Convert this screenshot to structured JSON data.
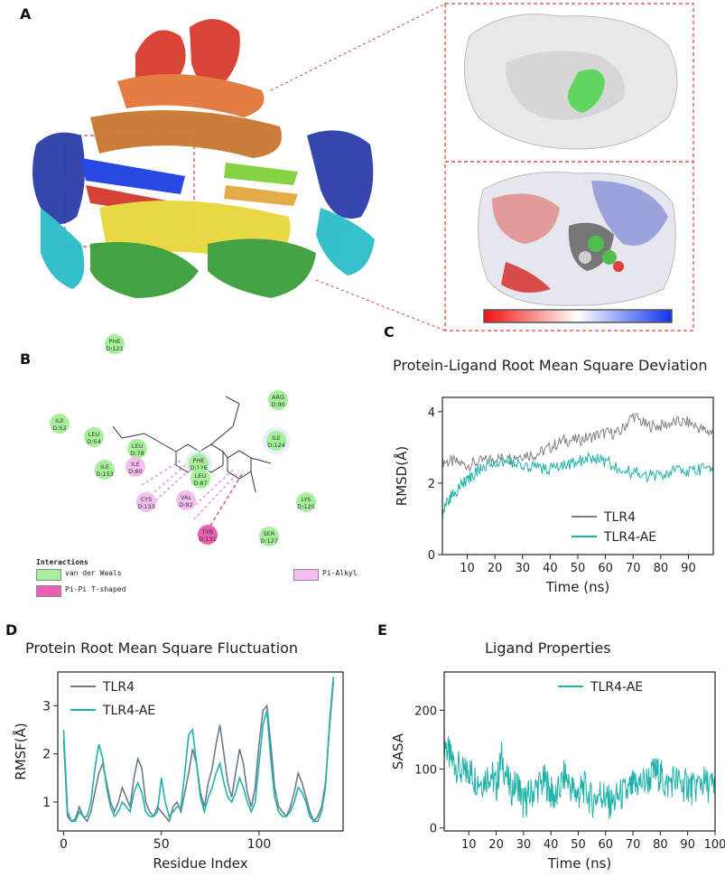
{
  "panels": {
    "A": {
      "label": "A"
    },
    "B": {
      "label": "B",
      "residues": [
        {
          "name": "PHE",
          "id": "D:121",
          "kind": "vdw"
        },
        {
          "name": "ARG",
          "id": "D:90",
          "kind": "vdw"
        },
        {
          "name": "ILE",
          "id": "D:124",
          "kind": "vdw"
        },
        {
          "name": "ILE",
          "id": "D:52",
          "kind": "vdw"
        },
        {
          "name": "LEU",
          "id": "D:54",
          "kind": "vdw"
        },
        {
          "name": "LEU",
          "id": "D:78",
          "kind": "vdw"
        },
        {
          "name": "ILE",
          "id": "D:80",
          "kind": "alkyl"
        },
        {
          "name": "ILE",
          "id": "D:153",
          "kind": "vdw"
        },
        {
          "name": "PHE",
          "id": "D:126",
          "kind": "vdw"
        },
        {
          "name": "LEU",
          "id": "D:87",
          "kind": "vdw"
        },
        {
          "name": "CYS",
          "id": "D:133",
          "kind": "alkyl"
        },
        {
          "name": "VAL",
          "id": "D:82",
          "kind": "alkyl"
        },
        {
          "name": "LYS",
          "id": "D:125",
          "kind": "vdw"
        },
        {
          "name": "TYR",
          "id": "D:131",
          "kind": "pipi"
        },
        {
          "name": "SER",
          "id": "D:127",
          "kind": "vdw"
        }
      ],
      "legend": {
        "title": "Interactions",
        "vdw": "van der Waals",
        "pipi": "Pi-Pi T-shaped",
        "alkyl": "Pi-Alkyl"
      },
      "colors": {
        "vdw": "#a6f09a",
        "pipi": "#e861b4",
        "alkyl": "#f4bff0"
      }
    }
  },
  "chart_data": [
    {
      "id": "C",
      "label": "C",
      "type": "line",
      "title": "Protein-Ligand Root Mean Square Deviation",
      "xlabel": "Time (ns)",
      "ylabel": "RMSD(Å)",
      "xlim": [
        1,
        99
      ],
      "ylim": [
        0,
        4.4
      ],
      "xticks": [
        10,
        20,
        30,
        40,
        50,
        60,
        70,
        80,
        90
      ],
      "yticks": [
        0,
        2,
        4
      ],
      "legend_position": "lower-right",
      "series": [
        {
          "name": "TLR4",
          "color": "#808080",
          "x": [
            1,
            5,
            10,
            15,
            20,
            25,
            30,
            35,
            40,
            45,
            50,
            55,
            60,
            65,
            70,
            75,
            80,
            85,
            90,
            95,
            99
          ],
          "y": [
            2.6,
            2.6,
            2.5,
            2.6,
            2.7,
            2.7,
            2.8,
            2.8,
            3.0,
            3.2,
            3.2,
            3.3,
            3.4,
            3.4,
            3.9,
            3.6,
            3.6,
            3.7,
            3.7,
            3.5,
            3.4
          ]
        },
        {
          "name": "TLR4-AE",
          "color": "#20b2aa",
          "x": [
            1,
            3,
            5,
            8,
            10,
            12,
            15,
            20,
            25,
            30,
            35,
            40,
            45,
            50,
            55,
            60,
            65,
            70,
            75,
            80,
            85,
            90,
            95,
            99
          ],
          "y": [
            1.1,
            1.5,
            1.7,
            2.0,
            2.1,
            2.2,
            2.4,
            2.6,
            2.6,
            2.5,
            2.4,
            2.4,
            2.5,
            2.6,
            2.7,
            2.6,
            2.4,
            2.3,
            2.2,
            2.2,
            2.4,
            2.3,
            2.4,
            2.5
          ]
        }
      ]
    },
    {
      "id": "D",
      "label": "D",
      "type": "line",
      "title": "Protein Root Mean Square Fluctuation",
      "xlabel": "Residue Index",
      "ylabel": "RMSF(Å)",
      "xlim": [
        -3,
        143
      ],
      "ylim": [
        0.4,
        3.7
      ],
      "xticks": [
        0,
        50,
        100
      ],
      "yticks": [
        1,
        2,
        3
      ],
      "legend_position": "top-left",
      "series": [
        {
          "name": "TLR4",
          "color": "#6b7b8c",
          "x": [
            0,
            2,
            4,
            6,
            8,
            10,
            12,
            14,
            16,
            18,
            20,
            22,
            24,
            26,
            28,
            30,
            32,
            34,
            36,
            38,
            40,
            42,
            44,
            46,
            48,
            50,
            52,
            54,
            56,
            58,
            60,
            62,
            64,
            66,
            68,
            70,
            72,
            74,
            76,
            78,
            80,
            82,
            84,
            86,
            88,
            90,
            92,
            94,
            96,
            98,
            100,
            102,
            104,
            106,
            108,
            110,
            112,
            114,
            116,
            118,
            120,
            122,
            124,
            126,
            128,
            130,
            132,
            134,
            136,
            138
          ],
          "y": [
            2.3,
            0.7,
            0.6,
            0.65,
            0.9,
            0.7,
            0.6,
            0.8,
            1.2,
            1.6,
            1.8,
            1.4,
            1.0,
            0.8,
            1.0,
            1.3,
            1.1,
            0.9,
            1.5,
            1.9,
            1.7,
            1.0,
            0.8,
            0.7,
            0.9,
            0.8,
            0.7,
            0.6,
            0.9,
            1.0,
            0.8,
            1.2,
            1.6,
            2.1,
            1.8,
            1.2,
            0.9,
            1.4,
            1.7,
            2.2,
            2.6,
            2.0,
            1.4,
            1.1,
            1.6,
            2.1,
            1.8,
            1.2,
            0.9,
            1.3,
            2.2,
            2.9,
            3.0,
            2.2,
            1.3,
            0.9,
            0.8,
            0.7,
            0.9,
            1.2,
            1.6,
            1.4,
            1.1,
            0.8,
            0.6,
            0.7,
            0.9,
            1.4,
            2.5,
            3.5
          ]
        },
        {
          "name": "TLR4-AE",
          "color": "#20b2aa",
          "x": [
            0,
            2,
            4,
            6,
            8,
            10,
            12,
            14,
            16,
            18,
            20,
            22,
            24,
            26,
            28,
            30,
            32,
            34,
            36,
            38,
            40,
            42,
            44,
            46,
            48,
            50,
            52,
            54,
            56,
            58,
            60,
            62,
            64,
            66,
            68,
            70,
            72,
            74,
            76,
            78,
            80,
            82,
            84,
            86,
            88,
            90,
            92,
            94,
            96,
            98,
            100,
            102,
            104,
            106,
            108,
            110,
            112,
            114,
            116,
            118,
            120,
            122,
            124,
            126,
            128,
            130,
            132,
            134,
            136,
            138
          ],
          "y": [
            2.5,
            0.8,
            0.6,
            0.6,
            0.8,
            0.7,
            0.7,
            1.0,
            1.7,
            2.2,
            1.9,
            1.3,
            0.9,
            0.7,
            0.8,
            1.0,
            0.9,
            0.8,
            1.2,
            1.4,
            1.2,
            0.8,
            0.7,
            0.7,
            0.8,
            1.5,
            1.0,
            0.7,
            0.8,
            0.9,
            0.9,
            1.6,
            2.4,
            2.5,
            1.8,
            1.1,
            0.8,
            1.1,
            1.3,
            1.6,
            1.8,
            1.4,
            1.1,
            1.0,
            1.2,
            1.5,
            1.3,
            1.0,
            0.8,
            1.0,
            1.8,
            2.6,
            2.9,
            1.9,
            1.1,
            0.8,
            0.7,
            0.7,
            0.8,
            1.0,
            1.3,
            1.2,
            1.0,
            0.7,
            0.6,
            0.6,
            0.8,
            1.3,
            2.6,
            3.6
          ]
        }
      ]
    },
    {
      "id": "E",
      "label": "E",
      "type": "line",
      "title": "Ligand Properties",
      "xlabel": "Time (ns)",
      "ylabel": "SASA",
      "xlim": [
        1,
        100
      ],
      "ylim": [
        -5,
        265
      ],
      "xticks": [
        10,
        20,
        30,
        40,
        50,
        60,
        70,
        80,
        90,
        100
      ],
      "yticks": [
        0,
        100,
        200
      ],
      "legend_position": "top-right",
      "series": [
        {
          "name": "TLR4-AE",
          "color": "#20b2aa",
          "x": [
            1,
            3,
            5,
            8,
            10,
            12,
            15,
            18,
            20,
            22,
            25,
            28,
            30,
            32,
            35,
            38,
            40,
            42,
            45,
            48,
            50,
            52,
            55,
            58,
            60,
            62,
            65,
            68,
            70,
            72,
            75,
            78,
            80,
            82,
            85,
            88,
            90,
            92,
            95,
            98,
            100
          ],
          "y": [
            150,
            120,
            110,
            90,
            100,
            85,
            80,
            95,
            70,
            120,
            65,
            75,
            40,
            55,
            70,
            80,
            60,
            50,
            90,
            65,
            55,
            70,
            45,
            60,
            50,
            40,
            55,
            60,
            70,
            75,
            80,
            95,
            90,
            70,
            85,
            70,
            75,
            65,
            80,
            70,
            75
          ]
        }
      ]
    }
  ]
}
